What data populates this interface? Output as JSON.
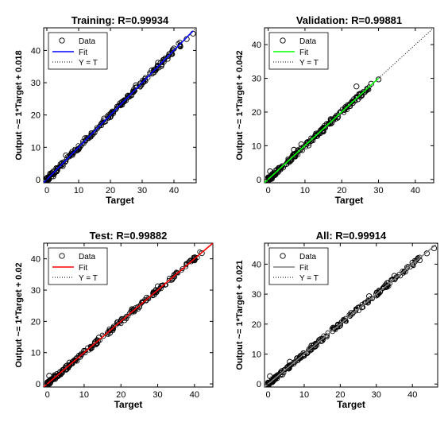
{
  "chart_data": [
    {
      "type": "scatter",
      "title": "Training: R=0.99934",
      "xlabel": "Target",
      "ylabel": "Output ~= 1*Target + 0.018",
      "xlim": [
        -1,
        47
      ],
      "ylim": [
        -1,
        47
      ],
      "xticks": [
        0,
        10,
        20,
        30,
        40
      ],
      "yticks": [
        0,
        10,
        20,
        30,
        40
      ],
      "fit_color": "#0000ff",
      "fit_slope": 1,
      "fit_intercept": 0.018,
      "x_max": 46,
      "legend": [
        "Data",
        "Fit",
        "Y = T"
      ],
      "legend_position": "top-left",
      "sample_points": [
        [
          0,
          0.5
        ],
        [
          1,
          1.8
        ],
        [
          2,
          1
        ],
        [
          3,
          3.5
        ],
        [
          5,
          4.2
        ],
        [
          6,
          7.5
        ],
        [
          8,
          8.6
        ],
        [
          10,
          9.4
        ],
        [
          12,
          12.8
        ],
        [
          15,
          14.6
        ],
        [
          18,
          18.9
        ],
        [
          20,
          19.4
        ],
        [
          23,
          23.6
        ],
        [
          26,
          25.7
        ],
        [
          28,
          29.2
        ],
        [
          31,
          30.6
        ],
        [
          33,
          33.8
        ],
        [
          35,
          36.2
        ],
        [
          36,
          35.1
        ],
        [
          38,
          37.4
        ],
        [
          40,
          40.6
        ],
        [
          42,
          41.2
        ],
        [
          44,
          43.5
        ],
        [
          46,
          45.2
        ]
      ]
    },
    {
      "type": "scatter",
      "title": "Validation: R=0.99881",
      "xlabel": "Target",
      "ylabel": "Output ~= 1*Target + 0.042",
      "xlim": [
        -1,
        45
      ],
      "ylim": [
        -1,
        45
      ],
      "xticks": [
        0,
        10,
        20,
        30,
        40
      ],
      "yticks": [
        0,
        10,
        20,
        30,
        40
      ],
      "fit_color": "#00ff00",
      "fit_slope": 1,
      "fit_intercept": 0.042,
      "x_max": 30,
      "legend": [
        "Data",
        "Fit",
        "Y = T"
      ],
      "legend_position": "top-left",
      "sample_points": [
        [
          0,
          0.6
        ],
        [
          0.5,
          2.4
        ],
        [
          1,
          0.2
        ],
        [
          2,
          1.5
        ],
        [
          3,
          3.4
        ],
        [
          5,
          4.6
        ],
        [
          7,
          8.8
        ],
        [
          9,
          10.4
        ],
        [
          11,
          10.1
        ],
        [
          13,
          13.6
        ],
        [
          15,
          14.2
        ],
        [
          17,
          17.9
        ],
        [
          19,
          18.6
        ],
        [
          21,
          21.5
        ],
        [
          23,
          22.7
        ],
        [
          24,
          27.6
        ],
        [
          25,
          25.4
        ],
        [
          27,
          26.8
        ],
        [
          28,
          28.4
        ],
        [
          30,
          29.7
        ]
      ]
    },
    {
      "type": "scatter",
      "title": "Test: R=0.99882",
      "xlabel": "Target",
      "ylabel": "Output ~= 1*Target + 0.02",
      "xlim": [
        -1,
        45
      ],
      "ylim": [
        -1,
        45
      ],
      "xticks": [
        0,
        10,
        20,
        30,
        40
      ],
      "yticks": [
        0,
        10,
        20,
        30,
        40
      ],
      "fit_color": "#ff0000",
      "fit_slope": 1,
      "fit_intercept": 0.02,
      "x_max": 45,
      "legend": [
        "Data",
        "Fit",
        "Y = T"
      ],
      "legend_position": "top-left",
      "sample_points": [
        [
          0,
          0.5
        ],
        [
          0.5,
          2.6
        ],
        [
          1,
          1.1
        ],
        [
          2,
          2.8
        ],
        [
          4,
          3.6
        ],
        [
          6,
          6.8
        ],
        [
          8,
          7.4
        ],
        [
          10,
          10.6
        ],
        [
          12,
          11.5
        ],
        [
          14,
          14.8
        ],
        [
          17,
          16.3
        ],
        [
          19,
          19.7
        ],
        [
          21,
          20.4
        ],
        [
          23,
          23.9
        ],
        [
          25,
          24.6
        ],
        [
          27,
          27.6
        ],
        [
          29,
          28.5
        ],
        [
          30,
          31.2
        ],
        [
          34,
          33.8
        ],
        [
          40,
          39.5
        ],
        [
          42,
          41.8
        ]
      ]
    },
    {
      "type": "scatter",
      "title": "All: R=0.99914",
      "xlabel": "Target",
      "ylabel": "Output ~= 1*Target + 0.021",
      "xlim": [
        -1,
        47
      ],
      "ylim": [
        -1,
        47
      ],
      "xticks": [
        0,
        10,
        20,
        30,
        40
      ],
      "yticks": [
        0,
        10,
        20,
        30,
        40
      ],
      "fit_color": "#808080",
      "fit_slope": 1,
      "fit_intercept": 0.021,
      "x_max": 46,
      "legend": [
        "Data",
        "Fit",
        "Y = T"
      ],
      "legend_position": "top-left",
      "sample_points": [
        [
          0,
          0.5
        ],
        [
          0.5,
          2.6
        ],
        [
          1,
          1
        ],
        [
          2,
          2.4
        ],
        [
          4,
          3.2
        ],
        [
          6,
          7.4
        ],
        [
          8,
          8.6
        ],
        [
          10,
          9.5
        ],
        [
          12,
          12.8
        ],
        [
          15,
          14.5
        ],
        [
          18,
          18.8
        ],
        [
          20,
          19.5
        ],
        [
          23,
          23.7
        ],
        [
          26,
          25.6
        ],
        [
          28,
          29.3
        ],
        [
          31,
          30.7
        ],
        [
          33,
          33.7
        ],
        [
          35,
          36.1
        ],
        [
          38,
          37.5
        ],
        [
          40,
          40.5
        ],
        [
          42,
          41.3
        ],
        [
          44,
          43.6
        ],
        [
          46,
          45.3
        ]
      ]
    }
  ]
}
